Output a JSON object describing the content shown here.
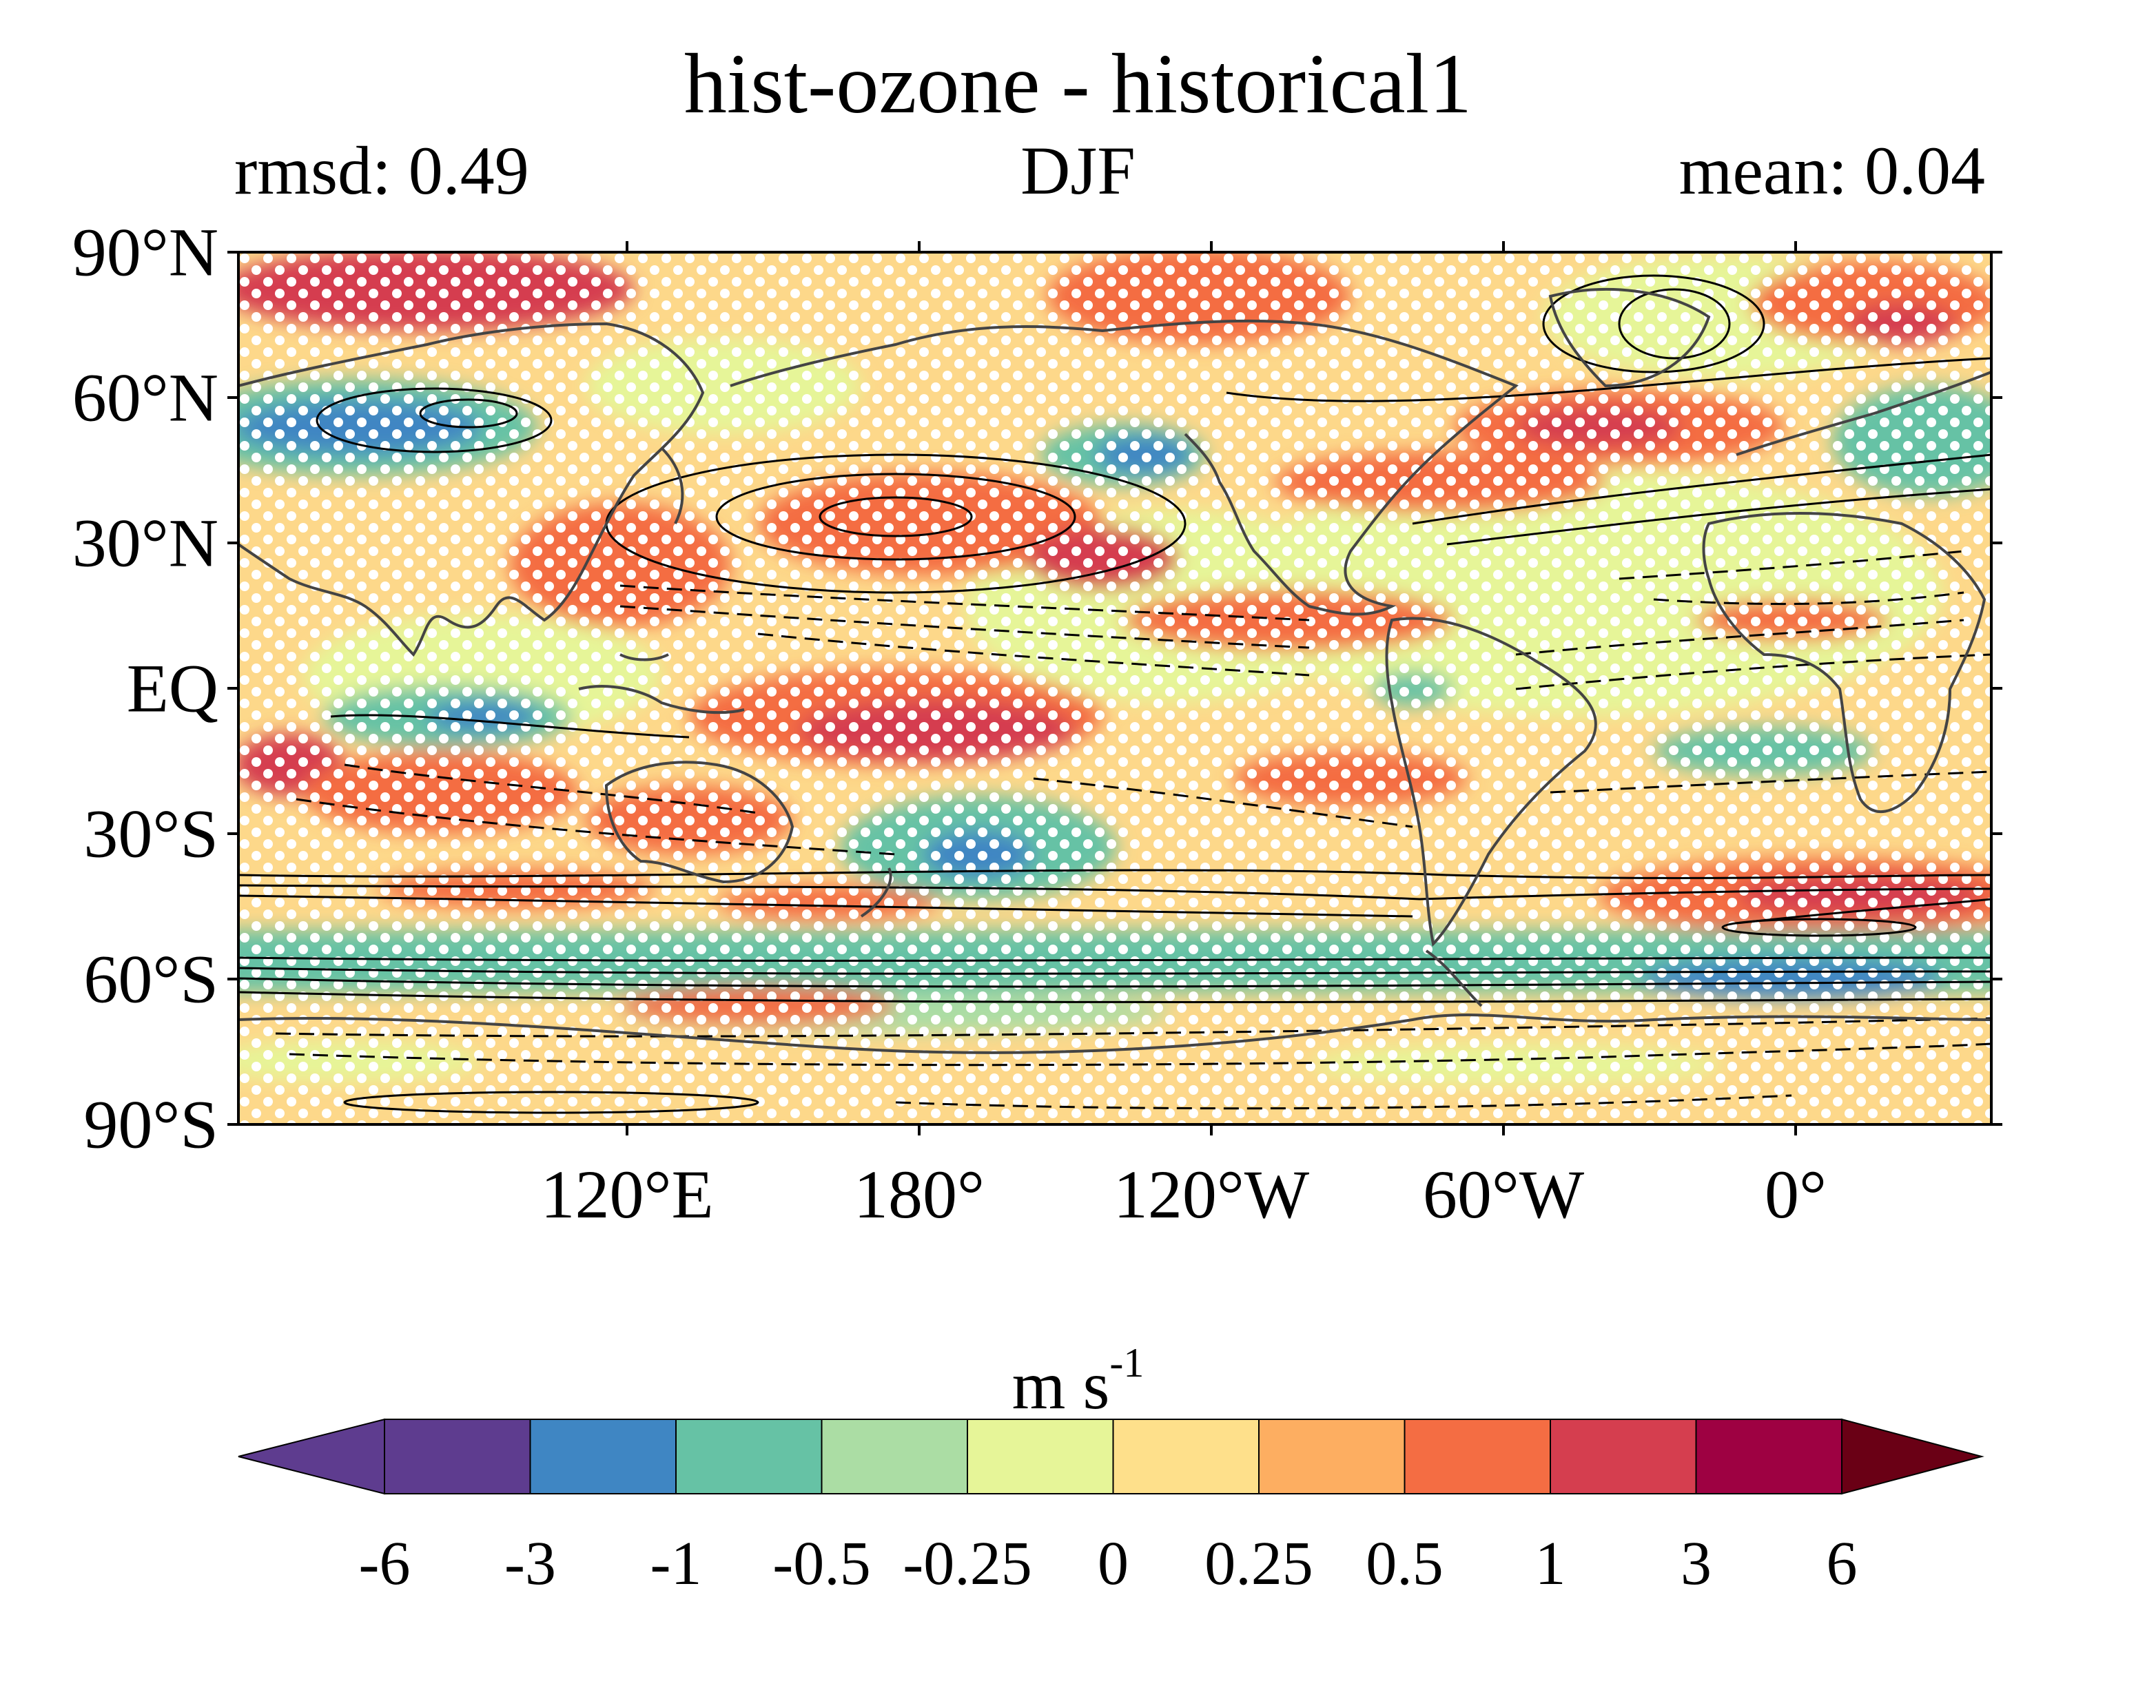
{
  "title": "hist-ozone - historical1",
  "season": "DJF",
  "rmsd_label": "rmsd: 0.49",
  "mean_label": "mean: 0.04",
  "lat_labels": [
    "90°N",
    "60°N",
    "30°N",
    "EQ",
    "30°S",
    "60°S",
    "90°S"
  ],
  "lon_labels": [
    "120°E",
    "180°",
    "120°W",
    "60°W",
    "0°"
  ],
  "units": {
    "base": "m s",
    "exponent": "-1"
  },
  "colorbar": {
    "labels": [
      "-6",
      "-3",
      "-1",
      "-0.5",
      "-0.25",
      "0",
      "0.25",
      "0.5",
      "1",
      "3",
      "6"
    ],
    "colors": [
      "#5e3c8f",
      "#3f86c3",
      "#66c2a5",
      "#abdda4",
      "#e6f598",
      "#fee08b",
      "#fdae61",
      "#f46d43",
      "#d53e4f",
      "#9e0142",
      "#6a0015"
    ],
    "under_color": "#5e3c8f",
    "over_color": "#6a0015"
  },
  "map": {
    "projection": "cylindrical equidistant",
    "lon_range": [
      40,
      400
    ],
    "lat_range": [
      -90,
      90
    ],
    "stippling": "white dots",
    "contours": "solid positive, dashed negative"
  }
}
